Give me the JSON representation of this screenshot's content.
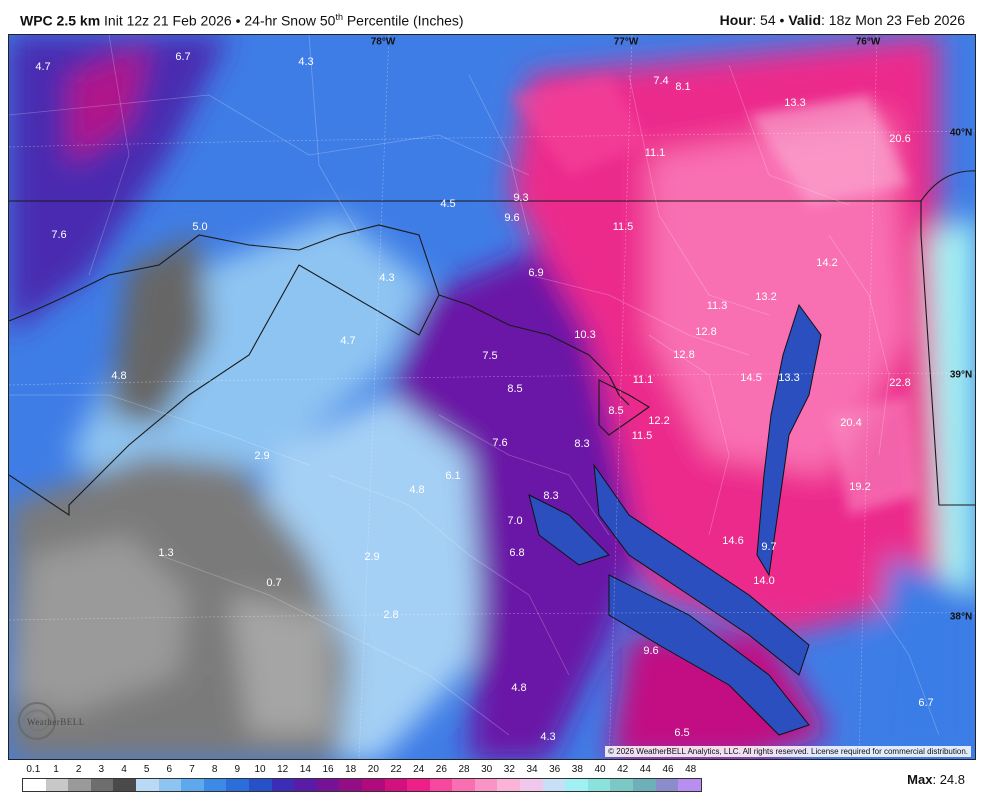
{
  "header": {
    "model": "WPC 2.5 km",
    "init": "Init 12z 21 Feb 2026",
    "bullet": "•",
    "product_pre": "24-hr Snow 50",
    "product_sup": "th",
    "product_post": "Percentile (Inches)",
    "hour_label": "Hour",
    "hour_value": ": 54 •",
    "valid_label": "Valid",
    "valid_value": ": 18z Mon 23 Feb 2026"
  },
  "map": {
    "coords": [
      "78°W",
      "77°W",
      "76°W",
      "40°N",
      "39°N",
      "38°N"
    ],
    "values": [
      "4.7",
      "6.7",
      "4.3",
      "7.4",
      "8.1",
      "13.3",
      "20.6",
      "11.1",
      "9.3",
      "4.5",
      "9.6",
      "7.6",
      "5.0",
      "11.5",
      "6.9",
      "4.3",
      "14.2",
      "11.3",
      "13.2",
      "12.8",
      "10.3",
      "4.7",
      "7.5",
      "12.8",
      "11.1",
      "8.5",
      "14.5",
      "13.3",
      "22.8",
      "8.5",
      "12.2",
      "11.5",
      "20.4",
      "7.6",
      "8.3",
      "2.9",
      "6.1",
      "4.8",
      "19.2",
      "8.3",
      "7.0",
      "14.6",
      "9.7",
      "1.3",
      "6.8",
      "2.9",
      "14.0",
      "0.7",
      "2.8",
      "9.6",
      "4.8",
      "6.7",
      "4.3",
      "6.5",
      "4.8"
    ],
    "copyright": "© 2026 WeatherBELL Analytics, LLC. All rights reserved. License required for commercial distribution.",
    "logo_text": "WeatherBELL"
  },
  "legend": {
    "ticks": [
      "0.1",
      "1",
      "2",
      "3",
      "4",
      "5",
      "6",
      "7",
      "8",
      "9",
      "10",
      "12",
      "14",
      "16",
      "18",
      "20",
      "22",
      "24",
      "26",
      "28",
      "30",
      "32",
      "34",
      "36",
      "38",
      "40",
      "42",
      "44",
      "46",
      "48"
    ],
    "colors": [
      "#ffffff",
      "#c8c8c8",
      "#9a9a9a",
      "#6e6e6e",
      "#4a4a4a",
      "#b9d9f5",
      "#8ec4f2",
      "#5ea9ee",
      "#3b8ae6",
      "#2c6ddc",
      "#2651c8",
      "#3b2db8",
      "#5a1ca8",
      "#771297",
      "#930d86",
      "#b10a7c",
      "#d2107e",
      "#ef1f89",
      "#f7489d",
      "#f96fb2",
      "#fa93c6",
      "#fbb4d8",
      "#f0c8ec",
      "#c8dff6",
      "#a0f0f4",
      "#8ae2dc",
      "#7cc8c4",
      "#6db0b8",
      "#8b8ccc",
      "#b88ef0"
    ],
    "max_label": "Max",
    "max_value": ": 24.8"
  }
}
